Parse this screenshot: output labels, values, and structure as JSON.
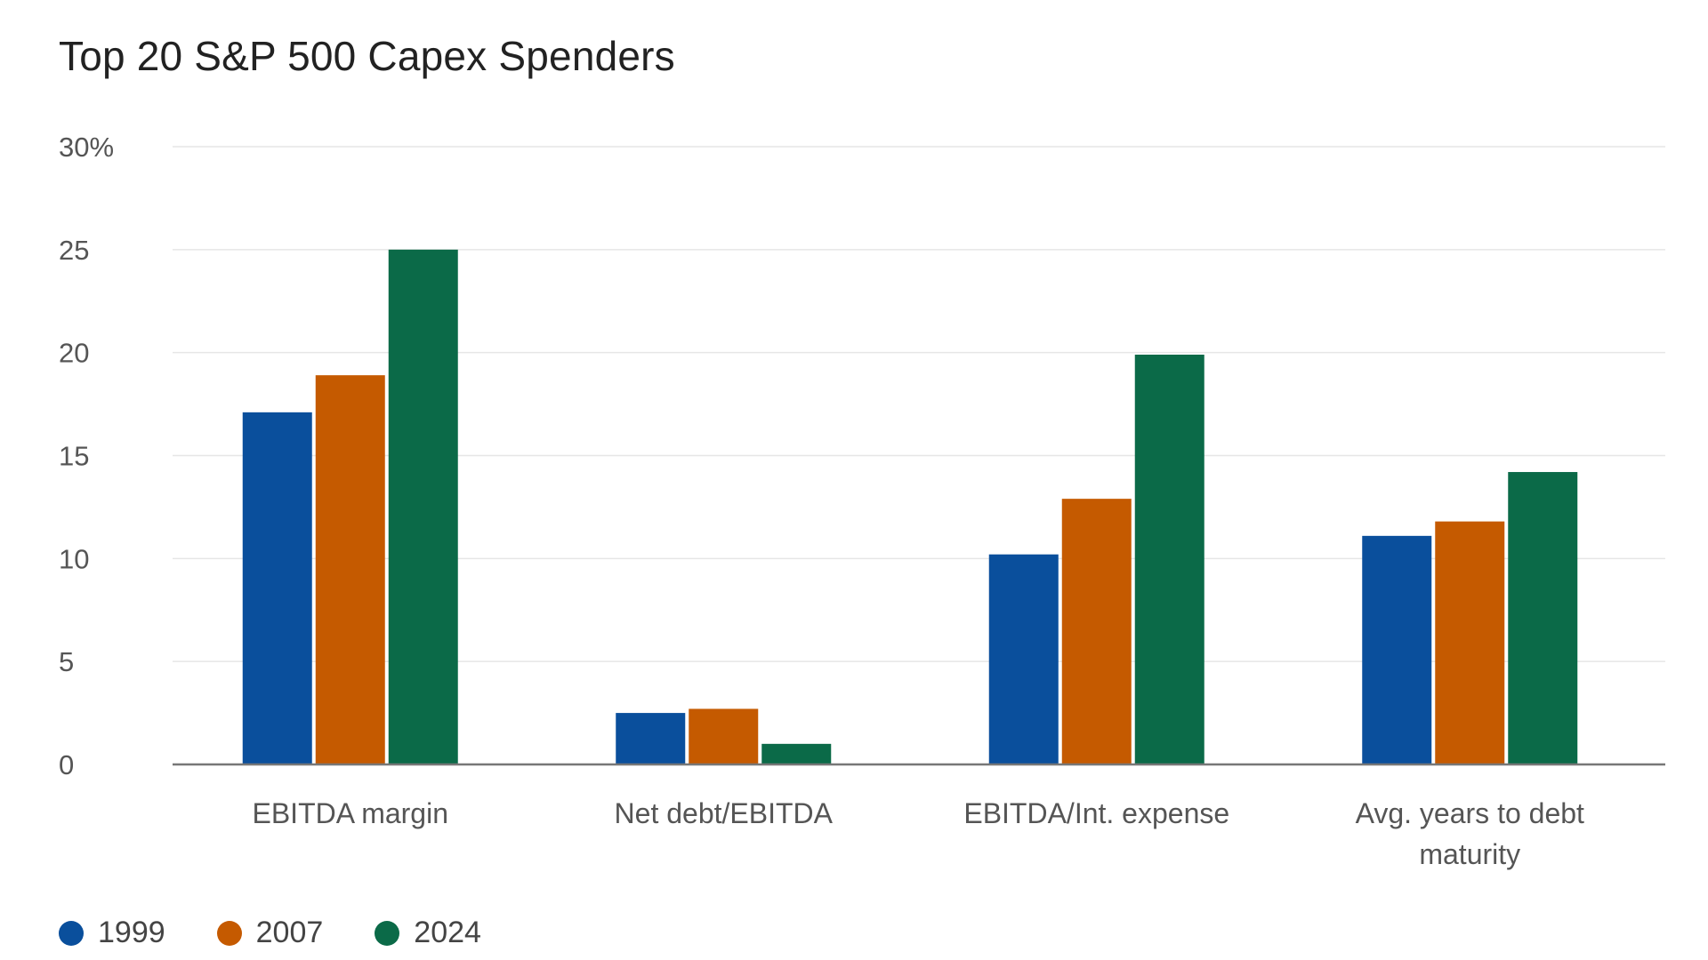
{
  "chart_data": {
    "type": "bar",
    "title": "Top 20 S&P 500 Capex Spenders",
    "xlabel": "",
    "ylabel": "",
    "ylim": [
      0,
      30
    ],
    "y_ticks": [
      {
        "value": 0,
        "label": "0"
      },
      {
        "value": 5,
        "label": "5"
      },
      {
        "value": 10,
        "label": "10"
      },
      {
        "value": 15,
        "label": "15"
      },
      {
        "value": 20,
        "label": "20"
      },
      {
        "value": 25,
        "label": "25"
      },
      {
        "value": 30,
        "label": "30%"
      }
    ],
    "grid": true,
    "legend_position": "bottom-left",
    "categories": [
      [
        "EBITDA margin"
      ],
      [
        "Net debt/EBITDA"
      ],
      [
        "EBITDA/Int. expense"
      ],
      [
        "Avg. years to debt",
        "maturity"
      ]
    ],
    "series": [
      {
        "name": "1999",
        "color": "#0A4F9C",
        "values": [
          17.1,
          2.5,
          10.2,
          11.1
        ]
      },
      {
        "name": "2007",
        "color": "#C55A00",
        "values": [
          18.9,
          2.7,
          12.9,
          11.8
        ]
      },
      {
        "name": "2024",
        "color": "#0B6A48",
        "values": [
          25.0,
          1.0,
          19.9,
          14.2
        ]
      }
    ]
  }
}
